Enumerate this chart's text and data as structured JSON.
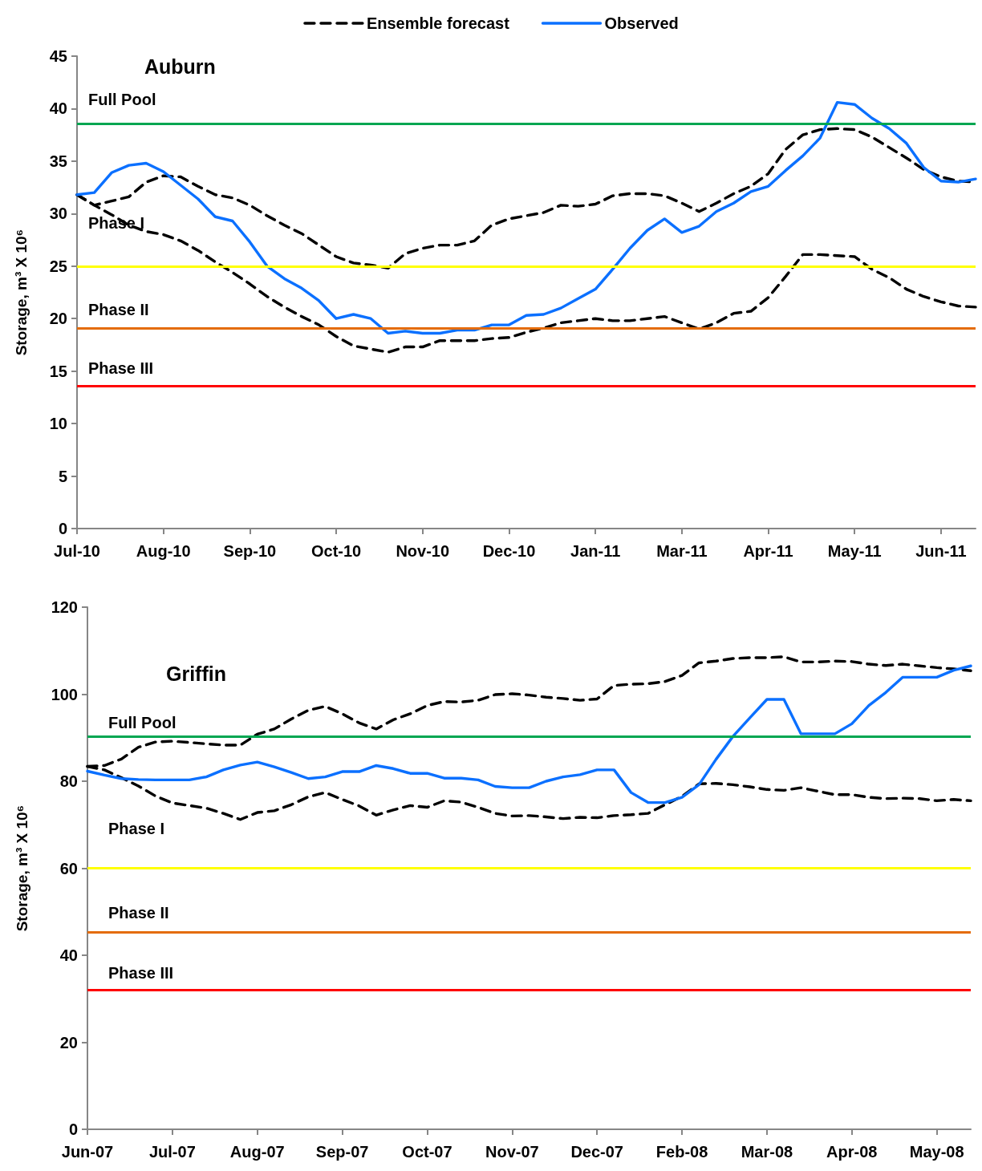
{
  "chart_data": [
    {
      "type": "line",
      "title": "Auburn",
      "ylabel": "Storage, m³ X 10⁶",
      "legend": "top",
      "marker": "none",
      "categories": [
        "Jul-10",
        null,
        null,
        null,
        null,
        "Aug-10",
        null,
        null,
        null,
        null,
        "Sep-10",
        null,
        null,
        null,
        null,
        "Oct-10",
        null,
        null,
        null,
        null,
        "Nov-10",
        null,
        null,
        null,
        null,
        "Dec-10",
        null,
        null,
        null,
        null,
        "Jan-11",
        null,
        null,
        null,
        null,
        "Mar-11",
        null,
        null,
        null,
        null,
        "Apr-11",
        null,
        null,
        null,
        null,
        "May-11",
        null,
        null,
        null,
        null,
        "Jun-11",
        null,
        null
      ],
      "series": [
        {
          "name": "Ensemble forecast",
          "color": "#000000",
          "line_style": "dashed",
          "values": [
            31.8,
            30.8,
            31.2,
            31.6,
            33.0,
            33.6,
            33.5,
            32.6,
            31.8,
            31.5,
            30.8,
            29.8,
            28.9,
            28.1,
            27.0,
            25.9,
            25.3,
            25.1,
            24.8,
            26.2,
            26.7,
            27.0,
            27.0,
            27.4,
            28.9,
            29.5,
            29.8,
            30.1,
            30.8,
            30.7,
            30.9,
            31.7,
            31.9,
            31.9,
            31.7,
            31.0,
            30.2,
            31.0,
            31.9,
            32.6,
            33.8,
            36.1,
            37.5,
            38.0,
            38.1,
            38.0,
            37.3,
            36.3,
            35.3,
            34.2,
            33.5,
            33.1,
            33.0
          ]
        },
        {
          "color": "#000000",
          "line_style": "dashed",
          "values": [
            31.8,
            30.8,
            29.9,
            28.9,
            28.3,
            28.0,
            27.4,
            26.5,
            25.4,
            24.4,
            23.3,
            22.1,
            21.1,
            20.2,
            19.4,
            18.3,
            17.4,
            17.1,
            16.8,
            17.3,
            17.3,
            17.9,
            17.9,
            17.9,
            18.1,
            18.2,
            18.7,
            19.1,
            19.6,
            19.8,
            20.0,
            19.8,
            19.8,
            20.0,
            20.2,
            19.6,
            19.0,
            19.6,
            20.5,
            20.7,
            22.0,
            24.0,
            26.1,
            26.1,
            26.0,
            25.9,
            24.7,
            23.9,
            22.8,
            22.1,
            21.6,
            21.2,
            21.1
          ]
        },
        {
          "name": "Observed",
          "color": "#0b70ff",
          "line_style": "solid",
          "values": [
            31.8,
            32.0,
            33.9,
            34.6,
            34.8,
            34.0,
            32.7,
            31.4,
            29.7,
            29.3,
            27.3,
            25.0,
            23.8,
            22.9,
            21.7,
            20.0,
            20.4,
            20.0,
            18.6,
            18.8,
            18.6,
            18.6,
            18.9,
            18.9,
            19.4,
            19.4,
            20.3,
            20.4,
            21.0,
            21.9,
            22.8,
            24.7,
            26.7,
            28.4,
            29.5,
            28.2,
            28.8,
            30.2,
            31.0,
            32.1,
            32.6,
            34.1,
            35.5,
            37.2,
            40.6,
            40.4,
            39.1,
            38.1,
            36.7,
            34.4,
            33.1,
            33.0,
            33.3
          ]
        }
      ],
      "ylim": [
        0,
        45
      ],
      "yticks": [
        0,
        5,
        10,
        15,
        20,
        25,
        30,
        35,
        40,
        45
      ],
      "ref_lines": [
        {
          "axis": "y",
          "value": 38.6,
          "label": "Full Pool",
          "color": "#00a651"
        },
        {
          "axis": "y",
          "value": 25,
          "label": "Phase I",
          "color": "#ffff00"
        },
        {
          "axis": "y",
          "value": 19.1,
          "label": "Phase II",
          "color": "#e46c0a"
        },
        {
          "axis": "y",
          "value": 13.6,
          "label": "Phase III",
          "color": "#ff0000"
        }
      ]
    },
    {
      "type": "line",
      "title": "Griffin",
      "ylabel": "Storage, m³ X 10⁶",
      "marker": "none",
      "categories": [
        "Jun-07",
        null,
        null,
        null,
        null,
        "Jul-07",
        null,
        null,
        null,
        null,
        "Aug-07",
        null,
        null,
        null,
        null,
        "Sep-07",
        null,
        null,
        null,
        null,
        "Oct-07",
        null,
        null,
        null,
        null,
        "Nov-07",
        null,
        null,
        null,
        null,
        "Dec-07",
        null,
        null,
        null,
        null,
        "Feb-08",
        null,
        null,
        null,
        null,
        "Mar-08",
        null,
        null,
        null,
        null,
        "Apr-08",
        null,
        null,
        null,
        null,
        "May-08",
        null,
        null
      ],
      "series": [
        {
          "color": "#000000",
          "line_style": "dashed",
          "values": [
            83.4,
            83.6,
            85.1,
            87.8,
            89.0,
            89.2,
            88.9,
            88.6,
            88.3,
            88.3,
            90.8,
            92.0,
            94.3,
            96.3,
            97.2,
            95.5,
            93.4,
            92.0,
            94.1,
            95.5,
            97.4,
            98.3,
            98.2,
            98.6,
            99.9,
            100.1,
            99.8,
            99.3,
            99.0,
            98.6,
            98.9,
            102.0,
            102.3,
            102.4,
            102.9,
            104.3,
            107.2,
            107.6,
            108.2,
            108.4,
            108.4,
            108.6,
            107.4,
            107.4,
            107.6,
            107.5,
            106.9,
            106.6,
            106.9,
            106.5,
            106.1,
            105.8,
            105.4
          ]
        },
        {
          "color": "#000000",
          "line_style": "dashed",
          "values": [
            83.4,
            82.6,
            80.8,
            78.9,
            76.6,
            75.0,
            74.4,
            73.8,
            72.6,
            71.2,
            72.8,
            73.2,
            74.6,
            76.4,
            77.4,
            75.8,
            74.3,
            72.2,
            73.4,
            74.4,
            74.0,
            75.5,
            75.2,
            74.0,
            72.6,
            72.0,
            72.1,
            71.8,
            71.4,
            71.7,
            71.6,
            72.1,
            72.3,
            72.6,
            74.6,
            76.5,
            79.4,
            79.5,
            79.2,
            78.7,
            78.1,
            77.9,
            78.5,
            77.7,
            76.9,
            76.9,
            76.3,
            76.0,
            76.1,
            76.0,
            75.5,
            75.8,
            75.5
          ]
        },
        {
          "color": "#0b70ff",
          "line_style": "solid",
          "values": [
            82.3,
            81.4,
            80.6,
            80.4,
            80.3,
            80.3,
            80.3,
            81.0,
            82.6,
            83.7,
            84.4,
            83.3,
            82.0,
            80.6,
            81.0,
            82.2,
            82.2,
            83.6,
            82.9,
            81.8,
            81.8,
            80.7,
            80.7,
            80.3,
            78.8,
            78.5,
            78.5,
            80.0,
            81.0,
            81.5,
            82.6,
            82.6,
            77.4,
            75.1,
            75.1,
            76.3,
            79.2,
            85.0,
            90.3,
            94.6,
            98.8,
            98.8,
            90.9,
            90.9,
            90.9,
            93.2,
            97.4,
            100.4,
            103.9,
            103.9,
            103.9,
            105.5,
            106.5
          ]
        }
      ],
      "ylim": [
        0,
        120
      ],
      "yticks": [
        0,
        20,
        40,
        60,
        80,
        100,
        120
      ],
      "ref_lines": [
        {
          "axis": "y",
          "value": 90.3,
          "label": "Full Pool",
          "color": "#00a651"
        },
        {
          "axis": "y",
          "value": 60,
          "label": "Phase I",
          "color": "#ffff00"
        },
        {
          "axis": "y",
          "value": 45.3,
          "label": "Phase II",
          "color": "#e46c0a"
        },
        {
          "axis": "y",
          "value": 32,
          "label": "Phase III",
          "color": "#ff0000"
        }
      ]
    }
  ]
}
